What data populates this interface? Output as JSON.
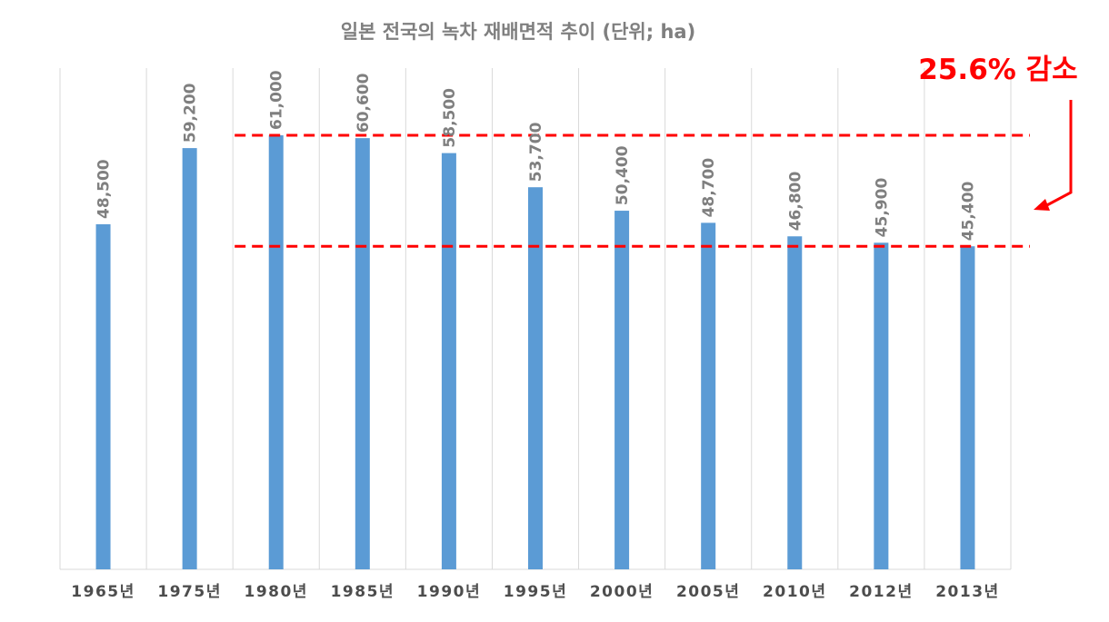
{
  "chart_data": {
    "type": "bar",
    "title": "일본 전국의 녹차 재배면적 추이 (단위; ha)",
    "categories": [
      "1965년",
      "1975년",
      "1980년",
      "1985년",
      "1990년",
      "1995년",
      "2000년",
      "2005년",
      "2010년",
      "2012년",
      "2013년"
    ],
    "values": [
      48500,
      59200,
      61000,
      60600,
      58500,
      53700,
      50400,
      48700,
      46800,
      45900,
      45400
    ],
    "data_labels": [
      "48,500",
      "59,200",
      "61,000",
      "60,600",
      "58,500",
      "53,700",
      "50,400",
      "48,700",
      "46,800",
      "45,900",
      "45,400"
    ],
    "ylim": [
      0,
      61000
    ],
    "grid": "vertical",
    "bar_color": "#5b9bd5",
    "reference_lines": [
      {
        "value": 61000,
        "from_category": "1980년",
        "color": "#ff0000",
        "style": "dashed"
      },
      {
        "value": 45400,
        "from_category": "1980년",
        "color": "#ff0000",
        "style": "dashed"
      }
    ],
    "annotations": [
      {
        "text": "25.6% 감소",
        "color": "#ff0000"
      }
    ]
  }
}
